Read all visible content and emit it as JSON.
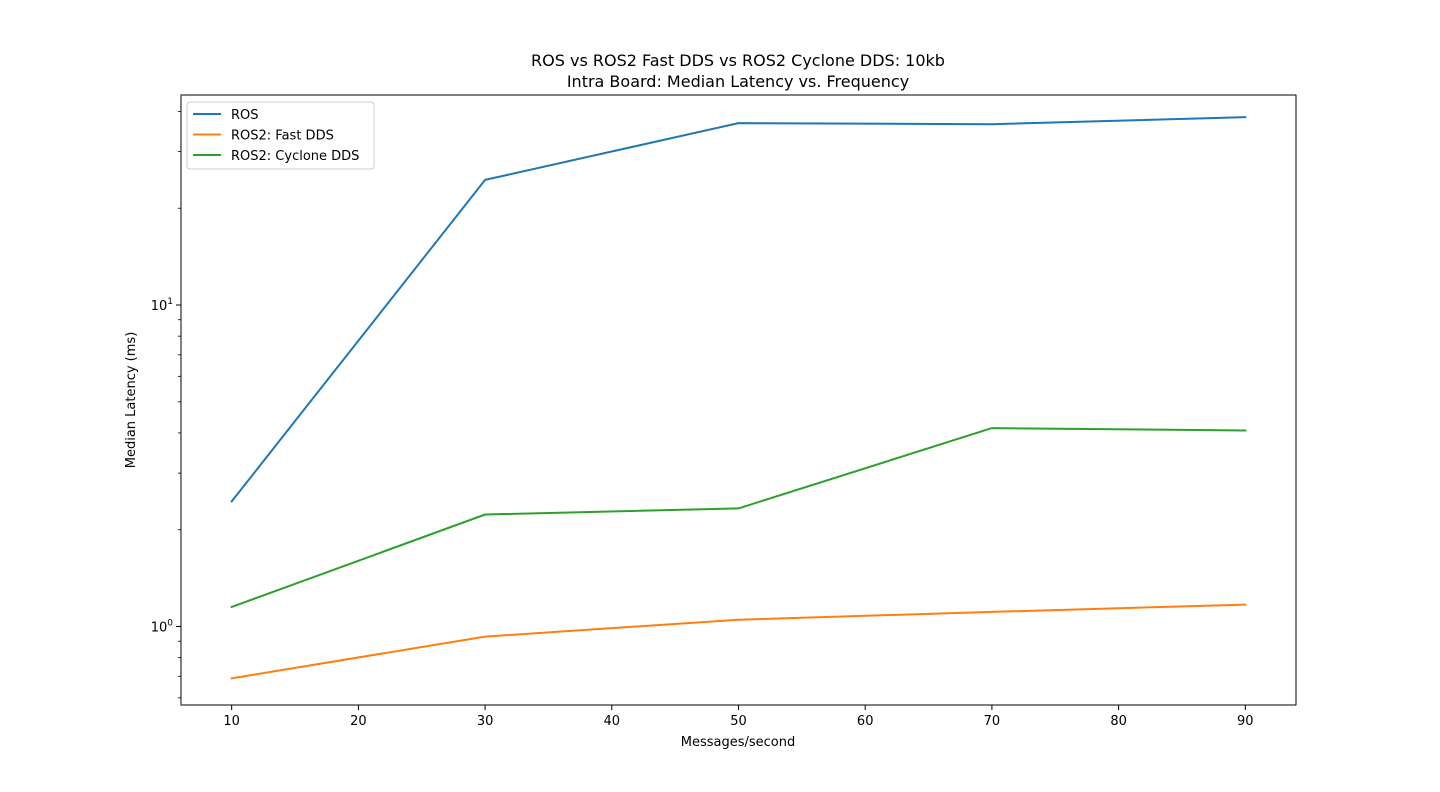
{
  "chart_data": {
    "type": "line",
    "title": "ROS vs ROS2 Fast DDS vs ROS2 Cyclone DDS: 10kb",
    "subtitle": "Intra Board: Median Latency vs. Frequency",
    "xlabel": "Messages/second",
    "ylabel": "Median Latency (ms)",
    "xscale": "linear",
    "yscale": "log",
    "xlim": [
      6,
      94
    ],
    "ylim": [
      0.57,
      45
    ],
    "x": [
      10,
      30,
      50,
      70,
      90
    ],
    "xticks": [
      10,
      20,
      30,
      40,
      50,
      60,
      70,
      80,
      90
    ],
    "yticks": [
      {
        "value": 1,
        "base": "10",
        "exponent": "0"
      },
      {
        "value": 10,
        "base": "10",
        "exponent": "1"
      }
    ],
    "grid": false,
    "legend_position": "upper-left",
    "series": [
      {
        "name": "ROS",
        "color": "#1f77b4",
        "values": [
          2.45,
          24.5,
          36.8,
          36.5,
          38.4
        ]
      },
      {
        "name": "ROS2: Fast DDS",
        "color": "#ff7f0e",
        "values": [
          0.69,
          0.93,
          1.05,
          1.11,
          1.17
        ]
      },
      {
        "name": "ROS2: Cyclone DDS",
        "color": "#2ca02c",
        "values": [
          1.15,
          2.23,
          2.33,
          4.14,
          4.07
        ]
      }
    ]
  }
}
